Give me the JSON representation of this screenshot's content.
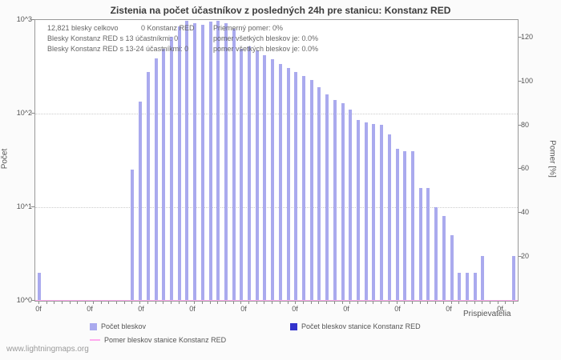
{
  "watermark": "www.lightningmaps.org",
  "info": {
    "rows": [
      [
        "12,821 blesky celkovo",
        "0 Konstanz RED",
        "Priemerný pomer: 0%"
      ],
      [
        "Blesky Konstanz RED s 13 účastníkmi: 0",
        "pomer všetkých bleskov je: 0.0%"
      ],
      [
        "Blesky Konstanz RED s 13-24 účastníkmi: 0",
        "pomer všetkých bleskov je: 0.0%"
      ]
    ]
  },
  "chart_data": {
    "type": "bar",
    "title": "Zistenia na počet účastníkov z posledných 24h pre stanicu: Konstanz RED",
    "xlabel": "Prispievatelia",
    "ylabel_left": "Počet",
    "ylabel_right": "Pomer [%]",
    "y_scale_left": "log10",
    "ylim_left": [
      1,
      1000
    ],
    "ylim_right": [
      0,
      128
    ],
    "left_ticks": [
      "10^0",
      "10^1",
      "10^2",
      "10^3"
    ],
    "right_ticks": [
      20,
      40,
      60,
      80,
      100,
      120
    ],
    "x_tick_labels": [
      "0f",
      "0f",
      "0f",
      "0f",
      "0f",
      "0f",
      "0f",
      "0f",
      "0f",
      "0f"
    ],
    "grid": "dotted horizontal at log decades",
    "legend_position": "bottom",
    "total_strikes": "12,821",
    "station_strikes": 0,
    "average_ratio_percent": 0,
    "series": [
      {
        "name": "Počet bleskov",
        "color": "#aaaaee",
        "axis": "left",
        "values": [
          2,
          0,
          0,
          0,
          0,
          0,
          0,
          0,
          0,
          0,
          0,
          0,
          25,
          135,
          280,
          390,
          490,
          660,
          850,
          980,
          930,
          890,
          960,
          990,
          930,
          810,
          490,
          520,
          470,
          420,
          380,
          340,
          310,
          280,
          250,
          230,
          190,
          160,
          140,
          130,
          110,
          85,
          80,
          78,
          76,
          60,
          42,
          40,
          40,
          16,
          16,
          10,
          8,
          5,
          2,
          2,
          2,
          3,
          0,
          0,
          0,
          3
        ]
      },
      {
        "name": "Počet bleskov stanice Konstanz RED",
        "color": "#3333cc",
        "axis": "left",
        "values_constant": 0
      },
      {
        "name": "Pomer bleskov stanice Konstanz RED",
        "color": "#ffaaee",
        "axis": "right",
        "values_constant": 0
      }
    ]
  }
}
